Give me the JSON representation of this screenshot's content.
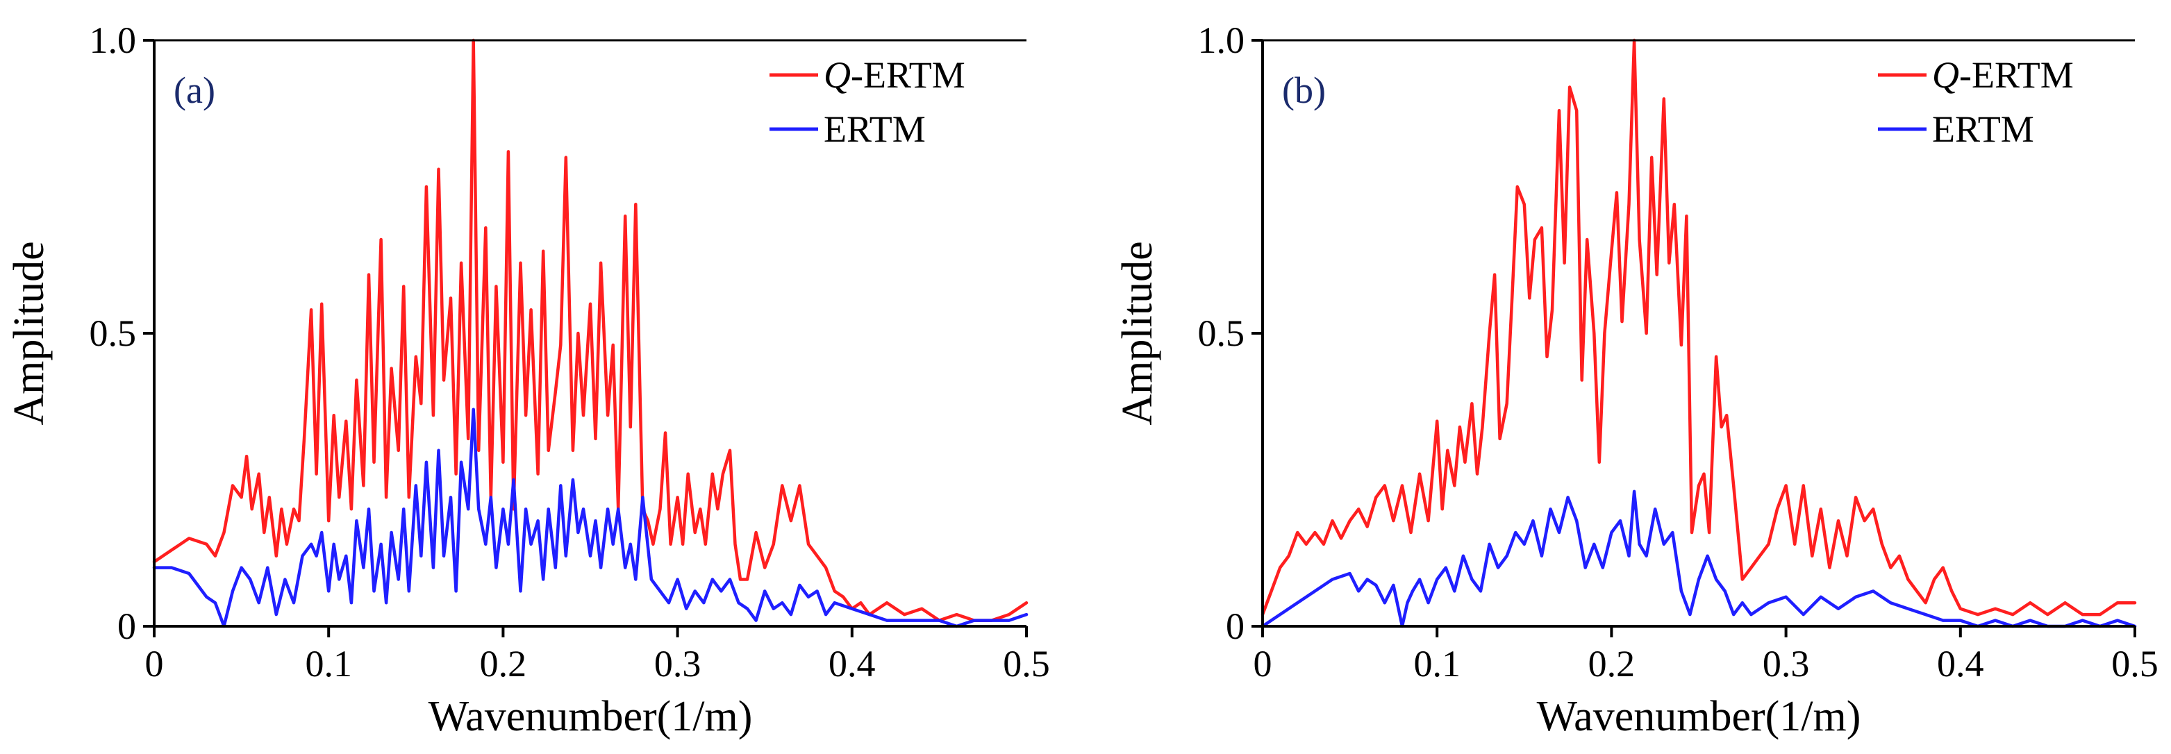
{
  "colors": {
    "qertm": "#ff1f1f",
    "ertm": "#1f1fff",
    "panel_label": "#1a2a6c",
    "axis": "#000000"
  },
  "chart_data": [
    {
      "type": "line",
      "panel_label": "(a)",
      "xlabel": "Wavenumber(1/m)",
      "ylabel": "Amplitude",
      "xlim": [
        0,
        0.5
      ],
      "ylim": [
        0,
        1.0
      ],
      "xticks": [
        "0",
        "0.1",
        "0.2",
        "0.3",
        "0.4",
        "0.5"
      ],
      "yticks": [
        "0",
        "0.5",
        "1.0"
      ],
      "legend_position": "top-right",
      "series": [
        {
          "name": "Q-ERTM",
          "name_italic": "Q",
          "name_rest": "-ERTM",
          "color": "#ff1f1f",
          "x": [
            0.0,
            0.01,
            0.02,
            0.03,
            0.035,
            0.04,
            0.045,
            0.05,
            0.053,
            0.056,
            0.06,
            0.063,
            0.066,
            0.07,
            0.073,
            0.076,
            0.08,
            0.083,
            0.086,
            0.09,
            0.093,
            0.096,
            0.1,
            0.103,
            0.106,
            0.11,
            0.113,
            0.116,
            0.12,
            0.123,
            0.126,
            0.13,
            0.133,
            0.136,
            0.14,
            0.143,
            0.146,
            0.15,
            0.153,
            0.156,
            0.16,
            0.163,
            0.166,
            0.17,
            0.173,
            0.176,
            0.18,
            0.183,
            0.186,
            0.19,
            0.193,
            0.196,
            0.2,
            0.203,
            0.206,
            0.21,
            0.213,
            0.216,
            0.22,
            0.223,
            0.226,
            0.23,
            0.233,
            0.236,
            0.24,
            0.243,
            0.246,
            0.25,
            0.253,
            0.256,
            0.26,
            0.263,
            0.266,
            0.27,
            0.273,
            0.276,
            0.28,
            0.283,
            0.286,
            0.29,
            0.293,
            0.296,
            0.3,
            0.303,
            0.306,
            0.31,
            0.313,
            0.316,
            0.32,
            0.323,
            0.326,
            0.33,
            0.333,
            0.336,
            0.34,
            0.345,
            0.35,
            0.355,
            0.36,
            0.365,
            0.37,
            0.375,
            0.38,
            0.385,
            0.39,
            0.395,
            0.4,
            0.405,
            0.41,
            0.42,
            0.43,
            0.44,
            0.45,
            0.46,
            0.47,
            0.48,
            0.49,
            0.5
          ],
          "y": [
            0.11,
            0.13,
            0.15,
            0.14,
            0.12,
            0.16,
            0.24,
            0.22,
            0.29,
            0.2,
            0.26,
            0.16,
            0.22,
            0.12,
            0.2,
            0.14,
            0.2,
            0.18,
            0.32,
            0.54,
            0.26,
            0.55,
            0.18,
            0.36,
            0.22,
            0.35,
            0.2,
            0.42,
            0.24,
            0.6,
            0.28,
            0.66,
            0.22,
            0.44,
            0.3,
            0.58,
            0.22,
            0.46,
            0.38,
            0.75,
            0.36,
            0.78,
            0.42,
            0.56,
            0.26,
            0.62,
            0.32,
            1.0,
            0.3,
            0.68,
            0.22,
            0.58,
            0.28,
            0.81,
            0.2,
            0.62,
            0.36,
            0.54,
            0.26,
            0.64,
            0.3,
            0.4,
            0.48,
            0.8,
            0.3,
            0.5,
            0.36,
            0.55,
            0.32,
            0.62,
            0.36,
            0.48,
            0.2,
            0.7,
            0.34,
            0.72,
            0.2,
            0.18,
            0.14,
            0.2,
            0.33,
            0.14,
            0.22,
            0.14,
            0.26,
            0.16,
            0.2,
            0.14,
            0.26,
            0.2,
            0.26,
            0.3,
            0.14,
            0.08,
            0.08,
            0.16,
            0.1,
            0.14,
            0.24,
            0.18,
            0.24,
            0.14,
            0.12,
            0.1,
            0.06,
            0.05,
            0.03,
            0.04,
            0.02,
            0.04,
            0.02,
            0.03,
            0.01,
            0.02,
            0.01,
            0.01,
            0.02,
            0.04
          ]
        },
        {
          "name": "ERTM",
          "name_italic": "",
          "name_rest": "ERTM",
          "color": "#1f1fff",
          "x": [
            0.0,
            0.01,
            0.02,
            0.025,
            0.03,
            0.035,
            0.04,
            0.045,
            0.05,
            0.055,
            0.06,
            0.065,
            0.07,
            0.075,
            0.08,
            0.085,
            0.09,
            0.093,
            0.096,
            0.1,
            0.103,
            0.106,
            0.11,
            0.113,
            0.116,
            0.12,
            0.123,
            0.126,
            0.13,
            0.133,
            0.136,
            0.14,
            0.143,
            0.146,
            0.15,
            0.153,
            0.156,
            0.16,
            0.163,
            0.166,
            0.17,
            0.173,
            0.176,
            0.18,
            0.183,
            0.186,
            0.19,
            0.193,
            0.196,
            0.2,
            0.203,
            0.206,
            0.21,
            0.213,
            0.216,
            0.22,
            0.223,
            0.226,
            0.23,
            0.233,
            0.236,
            0.24,
            0.243,
            0.246,
            0.25,
            0.253,
            0.256,
            0.26,
            0.263,
            0.266,
            0.27,
            0.273,
            0.276,
            0.28,
            0.285,
            0.29,
            0.295,
            0.3,
            0.305,
            0.31,
            0.315,
            0.32,
            0.325,
            0.33,
            0.335,
            0.34,
            0.345,
            0.35,
            0.355,
            0.36,
            0.365,
            0.37,
            0.375,
            0.38,
            0.385,
            0.39,
            0.4,
            0.41,
            0.42,
            0.43,
            0.44,
            0.45,
            0.46,
            0.47,
            0.48,
            0.49,
            0.5
          ],
          "y": [
            0.1,
            0.1,
            0.09,
            0.07,
            0.05,
            0.04,
            0.0,
            0.06,
            0.1,
            0.08,
            0.04,
            0.1,
            0.02,
            0.08,
            0.04,
            0.12,
            0.14,
            0.12,
            0.16,
            0.06,
            0.14,
            0.08,
            0.12,
            0.04,
            0.18,
            0.1,
            0.2,
            0.06,
            0.14,
            0.04,
            0.16,
            0.08,
            0.2,
            0.06,
            0.24,
            0.12,
            0.28,
            0.1,
            0.3,
            0.12,
            0.22,
            0.06,
            0.28,
            0.2,
            0.37,
            0.2,
            0.14,
            0.22,
            0.1,
            0.2,
            0.14,
            0.25,
            0.06,
            0.2,
            0.14,
            0.18,
            0.08,
            0.2,
            0.1,
            0.24,
            0.12,
            0.25,
            0.16,
            0.2,
            0.12,
            0.18,
            0.1,
            0.2,
            0.14,
            0.2,
            0.1,
            0.14,
            0.08,
            0.22,
            0.08,
            0.06,
            0.04,
            0.08,
            0.03,
            0.06,
            0.04,
            0.08,
            0.06,
            0.08,
            0.04,
            0.03,
            0.01,
            0.06,
            0.03,
            0.04,
            0.02,
            0.07,
            0.05,
            0.06,
            0.02,
            0.04,
            0.03,
            0.02,
            0.01,
            0.01,
            0.01,
            0.01,
            0.0,
            0.01,
            0.01,
            0.01,
            0.02
          ]
        }
      ]
    },
    {
      "type": "line",
      "panel_label": "(b)",
      "xlabel": "Wavenumber(1/m)",
      "ylabel": "Amplitude",
      "xlim": [
        0,
        0.5
      ],
      "ylim": [
        0,
        1.0
      ],
      "xticks": [
        "0",
        "0.1",
        "0.2",
        "0.3",
        "0.4",
        "0.5"
      ],
      "yticks": [
        "0",
        "0.5",
        "1.0"
      ],
      "legend_position": "top-right",
      "series": [
        {
          "name": "Q-ERTM",
          "name_italic": "Q",
          "name_rest": "-ERTM",
          "color": "#ff1f1f",
          "x": [
            0.0,
            0.005,
            0.01,
            0.015,
            0.02,
            0.025,
            0.03,
            0.035,
            0.04,
            0.045,
            0.05,
            0.055,
            0.06,
            0.065,
            0.07,
            0.075,
            0.08,
            0.085,
            0.09,
            0.095,
            0.1,
            0.103,
            0.106,
            0.11,
            0.113,
            0.116,
            0.12,
            0.123,
            0.126,
            0.13,
            0.133,
            0.136,
            0.14,
            0.143,
            0.146,
            0.15,
            0.153,
            0.156,
            0.16,
            0.163,
            0.166,
            0.17,
            0.173,
            0.176,
            0.18,
            0.183,
            0.186,
            0.19,
            0.193,
            0.196,
            0.2,
            0.203,
            0.206,
            0.21,
            0.213,
            0.216,
            0.22,
            0.223,
            0.226,
            0.23,
            0.233,
            0.236,
            0.24,
            0.243,
            0.246,
            0.25,
            0.253,
            0.256,
            0.26,
            0.263,
            0.266,
            0.27,
            0.275,
            0.28,
            0.285,
            0.29,
            0.295,
            0.3,
            0.305,
            0.31,
            0.315,
            0.32,
            0.325,
            0.33,
            0.335,
            0.34,
            0.345,
            0.35,
            0.355,
            0.36,
            0.365,
            0.37,
            0.375,
            0.38,
            0.385,
            0.39,
            0.395,
            0.4,
            0.41,
            0.42,
            0.43,
            0.44,
            0.45,
            0.46,
            0.47,
            0.48,
            0.49,
            0.5
          ],
          "y": [
            0.02,
            0.06,
            0.1,
            0.12,
            0.16,
            0.14,
            0.16,
            0.14,
            0.18,
            0.15,
            0.18,
            0.2,
            0.17,
            0.22,
            0.24,
            0.18,
            0.24,
            0.16,
            0.26,
            0.18,
            0.35,
            0.2,
            0.3,
            0.24,
            0.34,
            0.28,
            0.38,
            0.26,
            0.34,
            0.5,
            0.6,
            0.32,
            0.38,
            0.56,
            0.75,
            0.72,
            0.56,
            0.66,
            0.68,
            0.46,
            0.54,
            0.88,
            0.62,
            0.92,
            0.88,
            0.42,
            0.66,
            0.5,
            0.28,
            0.5,
            0.64,
            0.74,
            0.52,
            0.72,
            1.0,
            0.66,
            0.5,
            0.8,
            0.6,
            0.9,
            0.62,
            0.72,
            0.48,
            0.7,
            0.16,
            0.24,
            0.26,
            0.16,
            0.46,
            0.34,
            0.36,
            0.24,
            0.08,
            0.1,
            0.12,
            0.14,
            0.2,
            0.24,
            0.14,
            0.24,
            0.12,
            0.2,
            0.1,
            0.18,
            0.12,
            0.22,
            0.18,
            0.2,
            0.14,
            0.1,
            0.12,
            0.08,
            0.06,
            0.04,
            0.08,
            0.1,
            0.06,
            0.03,
            0.02,
            0.03,
            0.02,
            0.04,
            0.02,
            0.04,
            0.02,
            0.02,
            0.04,
            0.04
          ]
        },
        {
          "name": "ERTM",
          "name_italic": "",
          "name_rest": "ERTM",
          "color": "#1f1fff",
          "x": [
            0.0,
            0.01,
            0.02,
            0.03,
            0.04,
            0.05,
            0.055,
            0.06,
            0.065,
            0.07,
            0.075,
            0.08,
            0.083,
            0.086,
            0.09,
            0.095,
            0.1,
            0.105,
            0.11,
            0.115,
            0.12,
            0.125,
            0.13,
            0.135,
            0.14,
            0.145,
            0.15,
            0.155,
            0.16,
            0.165,
            0.17,
            0.175,
            0.18,
            0.185,
            0.19,
            0.195,
            0.2,
            0.205,
            0.21,
            0.213,
            0.216,
            0.22,
            0.225,
            0.23,
            0.235,
            0.24,
            0.245,
            0.25,
            0.255,
            0.26,
            0.265,
            0.27,
            0.275,
            0.28,
            0.29,
            0.3,
            0.31,
            0.32,
            0.33,
            0.34,
            0.35,
            0.36,
            0.37,
            0.38,
            0.39,
            0.4,
            0.41,
            0.42,
            0.43,
            0.44,
            0.45,
            0.46,
            0.47,
            0.48,
            0.49,
            0.5
          ],
          "y": [
            0.0,
            0.02,
            0.04,
            0.06,
            0.08,
            0.09,
            0.06,
            0.08,
            0.07,
            0.04,
            0.07,
            0.0,
            0.04,
            0.06,
            0.08,
            0.04,
            0.08,
            0.1,
            0.06,
            0.12,
            0.08,
            0.06,
            0.14,
            0.1,
            0.12,
            0.16,
            0.14,
            0.18,
            0.12,
            0.2,
            0.16,
            0.22,
            0.18,
            0.1,
            0.14,
            0.1,
            0.16,
            0.18,
            0.12,
            0.23,
            0.14,
            0.12,
            0.2,
            0.14,
            0.16,
            0.06,
            0.02,
            0.08,
            0.12,
            0.08,
            0.06,
            0.02,
            0.04,
            0.02,
            0.04,
            0.05,
            0.02,
            0.05,
            0.03,
            0.05,
            0.06,
            0.04,
            0.03,
            0.02,
            0.01,
            0.01,
            0.0,
            0.01,
            0.0,
            0.01,
            0.0,
            0.0,
            0.01,
            0.0,
            0.01,
            0.0
          ]
        }
      ]
    }
  ]
}
